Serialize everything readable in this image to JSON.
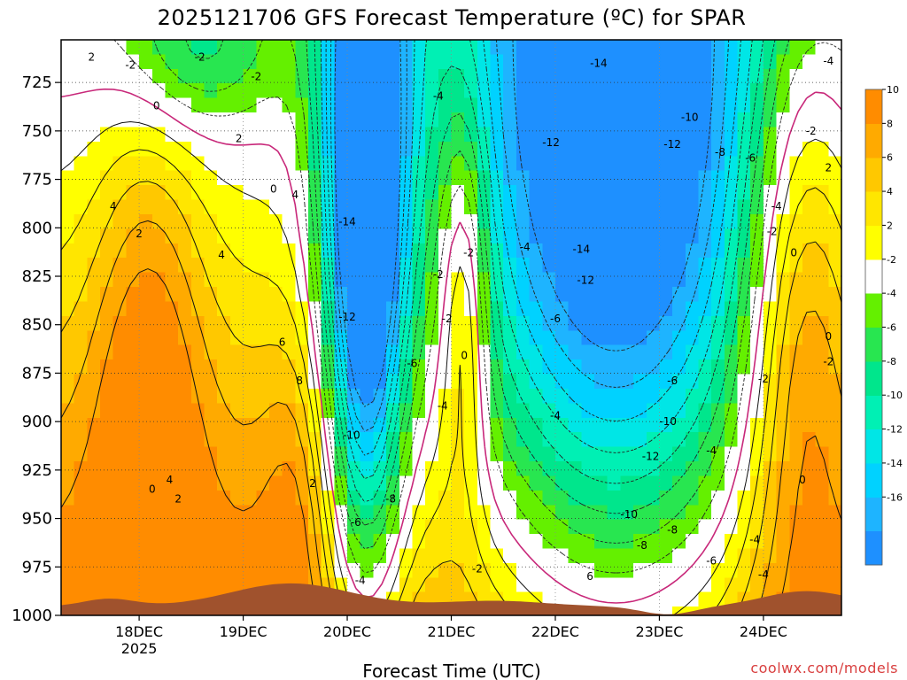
{
  "chart_data": {
    "type": "heatmap",
    "title": "2025121706 GFS Forecast Temperature (ºC) for SPAR",
    "xlabel": "Forecast Time (UTC)",
    "ylabel": "",
    "y_axis": {
      "ticks": [
        725,
        750,
        775,
        800,
        825,
        850,
        875,
        900,
        925,
        950,
        975,
        1000
      ],
      "ylim": [
        1000,
        703
      ],
      "unit": "hPa",
      "reversed": true
    },
    "x_axis": {
      "ticks": [
        {
          "label": "18DEC",
          "sublabel": "2025",
          "time": "2025-12-18T00"
        },
        {
          "label": "19DEC",
          "sublabel": "",
          "time": "2025-12-19T00"
        },
        {
          "label": "20DEC",
          "sublabel": "",
          "time": "2025-12-20T00"
        },
        {
          "label": "21DEC",
          "sublabel": "",
          "time": "2025-12-21T00"
        },
        {
          "label": "22DEC",
          "sublabel": "",
          "time": "2025-12-22T00"
        },
        {
          "label": "23DEC",
          "sublabel": "",
          "time": "2025-12-23T00"
        },
        {
          "label": "24DEC",
          "sublabel": "",
          "time": "2025-12-24T00"
        }
      ],
      "xlim": [
        "2025-12-17T06",
        "2025-12-24T18"
      ]
    },
    "grid": true,
    "colorbar": {
      "placement": "right",
      "levels": [
        -18,
        -16,
        -14,
        -12,
        -10,
        -8,
        -6,
        -4,
        -2,
        2,
        4,
        6,
        8,
        10,
        12
      ],
      "tick_labels": [
        "-16",
        "-14",
        "-12",
        "-10",
        "-8",
        "-6",
        "-4",
        "-2",
        "2",
        "4",
        "6",
        "8",
        "10"
      ],
      "colors": [
        "#1e90ff",
        "#1eb4ff",
        "#00d2ff",
        "#00e6e6",
        "#00f0b4",
        "#00e68c",
        "#28e650",
        "#64f000",
        "#ffffff",
        "#ffff00",
        "#ffe600",
        "#ffc800",
        "#ffaa00",
        "#ff8c00"
      ]
    },
    "terrain_color": "#a0522d",
    "contour_interval": 2,
    "zero_contour_color": "#c8287a",
    "contour_labels": [
      {
        "time": "2025-12-17T13",
        "p": 712,
        "text": "2"
      },
      {
        "time": "2025-12-17T22",
        "p": 716,
        "text": "-2"
      },
      {
        "time": "2025-12-18T14",
        "p": 712,
        "text": "-2"
      },
      {
        "time": "2025-12-19T03",
        "p": 722,
        "text": "-2"
      },
      {
        "time": "2025-12-18T04",
        "p": 737,
        "text": "0"
      },
      {
        "time": "2025-12-18T23",
        "p": 754,
        "text": "2"
      },
      {
        "time": "2025-12-19T07",
        "p": 780,
        "text": "0"
      },
      {
        "time": "2025-12-19T12",
        "p": 783,
        "text": "4"
      },
      {
        "time": "2025-12-17T18",
        "p": 789,
        "text": "4"
      },
      {
        "time": "2025-12-18T00",
        "p": 803,
        "text": "2"
      },
      {
        "time": "2025-12-18T19",
        "p": 814,
        "text": "4"
      },
      {
        "time": "2025-12-19T09",
        "p": 859,
        "text": "6"
      },
      {
        "time": "2025-12-19T13",
        "p": 879,
        "text": "8"
      },
      {
        "time": "2025-12-18T03",
        "p": 935,
        "text": "0"
      },
      {
        "time": "2025-12-18T07",
        "p": 930,
        "text": "4"
      },
      {
        "time": "2025-12-18T09",
        "p": 940,
        "text": "2"
      },
      {
        "time": "2025-12-19T16",
        "p": 932,
        "text": "2"
      },
      {
        "time": "2025-12-20T00",
        "p": 797,
        "text": "-14"
      },
      {
        "time": "2025-12-20T00",
        "p": 846,
        "text": "-12"
      },
      {
        "time": "2025-12-20T01",
        "p": 907,
        "text": "-10"
      },
      {
        "time": "2025-12-20T10",
        "p": 940,
        "text": "-8"
      },
      {
        "time": "2025-12-20T02",
        "p": 952,
        "text": "-6"
      },
      {
        "time": "2025-12-20T03",
        "p": 982,
        "text": "-4"
      },
      {
        "time": "2025-12-20T15",
        "p": 870,
        "text": "-6"
      },
      {
        "time": "2025-12-20T22",
        "p": 892,
        "text": "-4"
      },
      {
        "time": "2025-12-20T21",
        "p": 824,
        "text": "-2"
      },
      {
        "time": "2025-12-20T23",
        "p": 847,
        "text": "-2"
      },
      {
        "time": "2025-12-21T04",
        "p": 813,
        "text": "-2"
      },
      {
        "time": "2025-12-21T03",
        "p": 866,
        "text": "0"
      },
      {
        "time": "2025-12-21T06",
        "p": 976,
        "text": "-2"
      },
      {
        "time": "2025-12-20T21",
        "p": 732,
        "text": "-4"
      },
      {
        "time": "2025-12-21T17",
        "p": 810,
        "text": "-4"
      },
      {
        "time": "2025-12-22T00",
        "p": 847,
        "text": "-6"
      },
      {
        "time": "2025-12-22T00",
        "p": 897,
        "text": "-4"
      },
      {
        "time": "2025-12-22T08",
        "p": 980,
        "text": "6"
      },
      {
        "time": "2025-12-21T23",
        "p": 756,
        "text": "-12"
      },
      {
        "time": "2025-12-22T06",
        "p": 811,
        "text": "-14"
      },
      {
        "time": "2025-12-22T07",
        "p": 827,
        "text": "-12"
      },
      {
        "time": "2025-12-22T17",
        "p": 948,
        "text": "-10"
      },
      {
        "time": "2025-12-22T20",
        "p": 964,
        "text": "-8"
      },
      {
        "time": "2025-12-22T22",
        "p": 918,
        "text": "-12"
      },
      {
        "time": "2025-12-23T02",
        "p": 900,
        "text": "-10"
      },
      {
        "time": "2025-12-23T03",
        "p": 956,
        "text": "-8"
      },
      {
        "time": "2025-12-22T10",
        "p": 715,
        "text": "-14"
      },
      {
        "time": "2025-12-23T03",
        "p": 757,
        "text": "-12"
      },
      {
        "time": "2025-12-23T07",
        "p": 743,
        "text": "-10"
      },
      {
        "time": "2025-12-23T14",
        "p": 761,
        "text": "-8"
      },
      {
        "time": "2025-12-23T21",
        "p": 764,
        "text": "-6"
      },
      {
        "time": "2025-12-23T03",
        "p": 879,
        "text": "-6"
      },
      {
        "time": "2025-12-23T12",
        "p": 915,
        "text": "-4"
      },
      {
        "time": "2025-12-23T12",
        "p": 972,
        "text": "-6"
      },
      {
        "time": "2025-12-23T22",
        "p": 961,
        "text": "-4"
      },
      {
        "time": "2025-12-24T00",
        "p": 979,
        "text": "-4"
      },
      {
        "time": "2025-12-24T03",
        "p": 789,
        "text": "-4"
      },
      {
        "time": "2025-12-24T00",
        "p": 878,
        "text": "-2"
      },
      {
        "time": "2025-12-24T07",
        "p": 813,
        "text": "0"
      },
      {
        "time": "2025-12-24T02",
        "p": 802,
        "text": "-2"
      },
      {
        "time": "2025-12-24T15",
        "p": 714,
        "text": "-4"
      },
      {
        "time": "2025-12-24T11",
        "p": 750,
        "text": "-2"
      },
      {
        "time": "2025-12-24T15",
        "p": 769,
        "text": "2"
      },
      {
        "time": "2025-12-24T15",
        "p": 869,
        "text": "-2"
      },
      {
        "time": "2025-12-24T09",
        "p": 930,
        "text": "0"
      },
      {
        "time": "2025-12-24T15",
        "p": 856,
        "text": "0"
      }
    ]
  },
  "credit": "coolwx.com/models"
}
